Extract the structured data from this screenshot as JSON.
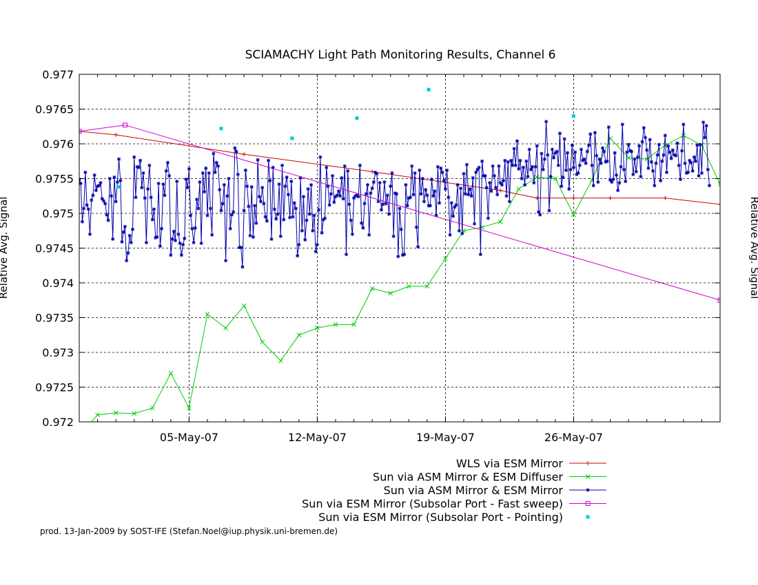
{
  "chart_data": {
    "type": "line",
    "title": "SCIAMACHY Light Path Monitoring Results, Channel 6",
    "ylabel": "Relative Avg. Signal",
    "ylabel_right": "Relative Avg. Signal",
    "xlabel": "",
    "xlim": [
      "2007-04-29T00:00",
      "2007-06-03T00:00"
    ],
    "ylim": [
      0.972,
      0.977
    ],
    "grid": true,
    "legend_position": "bottom-right",
    "x_ticks": [
      {
        "label": "05-May-07",
        "x": "2007-05-05"
      },
      {
        "label": "12-May-07",
        "x": "2007-05-12"
      },
      {
        "label": "19-May-07",
        "x": "2007-05-19"
      },
      {
        "label": "26-May-07",
        "x": "2007-05-26"
      }
    ],
    "y_ticks": [
      "0.972",
      "0.9725",
      "0.973",
      "0.9735",
      "0.974",
      "0.9745",
      "0.975",
      "0.9755",
      "0.976",
      "0.9765",
      "0.977"
    ],
    "series": [
      {
        "name": "WLS via ESM Mirror",
        "color": "#cc0000",
        "marker": "plus",
        "x": [
          "2007-04-29T00:00",
          "2007-05-01T00:00",
          "2007-05-08T00:00",
          "2007-05-15T00:00",
          "2007-05-22T00:00",
          "2007-05-24T00:00",
          "2007-05-26T00:00",
          "2007-05-28T00:00",
          "2007-05-31T00:00",
          "2007-06-03T00:00"
        ],
        "y": [
          0.97618,
          0.97613,
          0.97585,
          0.9756,
          0.97533,
          0.97522,
          0.97522,
          0.97522,
          0.97522,
          0.97513
        ]
      },
      {
        "name": "Sun via ASM Mirror & ESM Diffuser",
        "color": "#00cc00",
        "marker": "cross",
        "x": [
          "2007-04-29T12:00",
          "2007-04-30T00:00",
          "2007-05-01T00:00",
          "2007-05-02T00:00",
          "2007-05-03T00:00",
          "2007-05-04T00:00",
          "2007-05-05T00:00",
          "2007-05-06T00:00",
          "2007-05-07T00:00",
          "2007-05-08T00:00",
          "2007-05-09T00:00",
          "2007-05-10T00:00",
          "2007-05-11T00:00",
          "2007-05-12T00:00",
          "2007-05-13T00:00",
          "2007-05-14T00:00",
          "2007-05-15T00:00",
          "2007-05-16T00:00",
          "2007-05-17T00:00",
          "2007-05-18T00:00",
          "2007-05-19T00:00",
          "2007-05-20T00:00",
          "2007-05-21T00:00",
          "2007-05-22T00:00",
          "2007-05-23T00:00",
          "2007-05-24T00:00",
          "2007-05-25T00:00",
          "2007-05-26T00:00",
          "2007-05-27T00:00",
          "2007-05-28T00:00",
          "2007-05-29T00:00",
          "2007-05-30T00:00",
          "2007-05-31T00:00",
          "2007-06-01T00:00",
          "2007-06-02T00:00",
          "2007-06-03T00:00"
        ],
        "y": [
          0.97195,
          0.9721,
          0.97213,
          0.97212,
          0.9722,
          0.9727,
          0.9722,
          0.97355,
          0.97335,
          0.97367,
          0.97315,
          0.97288,
          0.97325,
          0.97335,
          0.9734,
          0.9734,
          0.97392,
          0.97385,
          0.97395,
          0.97395,
          0.97435,
          0.97475,
          0.9748,
          0.97488,
          0.97535,
          0.97552,
          0.9755,
          0.97498,
          0.97548,
          0.97608,
          0.9758,
          0.97578,
          0.97598,
          0.97612,
          0.97598,
          0.97542
        ]
      },
      {
        "name": "Sun via ASM Mirror & ESM Mirror",
        "color": "#0000aa",
        "marker": "star",
        "x_start": "2007-04-29T00:00",
        "x_step_hours": 2,
        "y": [
          0.97549,
          0.97543,
          0.97488,
          0.97507,
          0.97559,
          0.97512,
          0.97506,
          0.9747,
          0.97519,
          0.97526,
          0.97555,
          0.97533,
          0.97539,
          0.9754,
          0.97544,
          0.97521,
          0.97518,
          0.97514,
          0.97498,
          0.9749,
          0.9755,
          0.97525,
          0.97463,
          0.97552,
          0.97517,
          0.97545,
          0.97578,
          0.97547,
          0.97459,
          0.97473,
          0.97481,
          0.97432,
          0.97443,
          0.97468,
          0.97458,
          0.97477,
          0.97581,
          0.97523,
          0.97567,
          0.97566,
          0.97576,
          0.97537,
          0.97558,
          0.97522,
          0.97458,
          0.97535,
          0.97569,
          0.97523,
          0.97491,
          0.97506,
          0.97465,
          0.97466,
          0.97543,
          0.97453,
          0.97478,
          0.97542,
          0.97526,
          0.97561,
          0.97573,
          0.97554,
          0.9744,
          0.97463,
          0.97474,
          0.97461,
          0.97546,
          0.9747,
          0.97457,
          0.9744,
          0.97455,
          0.97464,
          0.97549,
          0.97537,
          0.97564,
          0.97497,
          0.97478,
          0.97458,
          0.97479,
          0.9752,
          0.97507,
          0.97545,
          0.97457,
          0.97558,
          0.97531,
          0.97565,
          0.97497,
          0.97558,
          0.97507,
          0.97469,
          0.97586,
          0.97559,
          0.97573,
          0.97568,
          0.97534,
          0.97504,
          0.97514,
          0.97541,
          0.97432,
          0.97525,
          0.9755,
          0.97478,
          0.97498,
          0.97502,
          0.97594,
          0.97589,
          0.97556,
          0.97451,
          0.97451,
          0.97423,
          0.97504,
          0.97562,
          0.97539,
          0.9751,
          0.97468,
          0.97538,
          0.97466,
          0.97511,
          0.97486,
          0.97577,
          0.97524,
          0.97517,
          0.97537,
          0.97514,
          0.97495,
          0.97489,
          0.97576,
          0.97547,
          0.97463,
          0.97566,
          0.97506,
          0.97492,
          0.97499,
          0.97542,
          0.97467,
          0.97569,
          0.97491,
          0.97539,
          0.97552,
          0.97527,
          0.97494,
          0.97546,
          0.97495,
          0.97515,
          0.97507,
          0.97439,
          0.97455,
          0.97551,
          0.97475,
          0.97524,
          0.97462,
          0.9749,
          0.97535,
          0.97499,
          0.97541,
          0.97475,
          0.97497,
          0.97445,
          0.97455,
          0.97505,
          0.97581,
          0.97472,
          0.97491,
          0.97493,
          0.97566,
          0.97539,
          0.97512,
          0.97528,
          0.97554,
          0.97516,
          0.97524,
          0.97526,
          0.97532,
          0.97525,
          0.97551,
          0.97521,
          0.97568,
          0.97441,
          0.97561,
          0.97513,
          0.9749,
          0.9747,
          0.97522,
          0.97525,
          0.97526,
          0.97524,
          0.97569,
          0.97486,
          0.97479,
          0.97514,
          0.97528,
          0.97541,
          0.97469,
          0.97529,
          0.97536,
          0.97545,
          0.97559,
          0.97557,
          0.97517,
          0.97544,
          0.97505,
          0.97513,
          0.97545,
          0.97514,
          0.97526,
          0.97499,
          0.97539,
          0.97558,
          0.97467,
          0.97529,
          0.97528,
          0.97438,
          0.97507,
          0.97477,
          0.9744,
          0.97441,
          0.97541,
          0.97511,
          0.97522,
          0.97523,
          0.97568,
          0.97527,
          0.97558,
          0.9748,
          0.97452,
          0.97562,
          0.97528,
          0.9755,
          0.97517,
          0.97534,
          0.97526,
          0.97511,
          0.97511,
          0.97549,
          0.97525,
          0.97532,
          0.97497,
          0.97567,
          0.97515,
          0.97565,
          0.97559,
          0.97547,
          0.97535,
          0.97562,
          0.97523,
          0.97469,
          0.97515,
          0.97496,
          0.97509,
          0.97512,
          0.97541,
          0.97475,
          0.97536,
          0.97471,
          0.97557,
          0.97528,
          0.9757,
          0.97527,
          0.97535,
          0.97525,
          0.97551,
          0.97485,
          0.97559,
          0.97563,
          0.97566,
          0.97441,
          0.97575,
          0.97554,
          0.97554,
          0.97537,
          0.97493,
          0.97544,
          0.97532,
          0.97568,
          0.97554,
          0.97537,
          0.97527,
          0.97568,
          0.97544,
          0.97541,
          0.97547,
          0.97576,
          0.97525,
          0.97574,
          0.97517,
          0.97576,
          0.97569,
          0.97593,
          0.97569,
          0.97604,
          0.97564,
          0.97576,
          0.9755,
          0.97566,
          0.97541,
          0.97575,
          0.97553,
          0.97592,
          0.97563,
          0.97567,
          0.97544,
          0.97567,
          0.97597,
          0.97502,
          0.97498,
          0.97586,
          0.97563,
          0.97578,
          0.97632,
          0.97584,
          0.97504,
          0.97553,
          0.97592,
          0.9758,
          0.97587,
          0.97589,
          0.97569,
          0.97615,
          0.97539,
          0.97552,
          0.97607,
          0.97562,
          0.97587,
          0.97535,
          0.97563,
          0.97598,
          0.97566,
          0.97588,
          0.97556,
          0.97558,
          0.97569,
          0.97592,
          0.97576,
          0.97578,
          0.97572,
          0.97589,
          0.97598,
          0.97614,
          0.97569,
          0.9754,
          0.97616,
          0.97583,
          0.97545,
          0.97578,
          0.97572,
          0.97594,
          0.97589,
          0.97574,
          0.97575,
          0.97624,
          0.97548,
          0.97545,
          0.97549,
          0.97587,
          0.97555,
          0.97533,
          0.97544,
          0.97567,
          0.97628,
          0.97563,
          0.97546,
          0.97588,
          0.97599,
          0.9759,
          0.97589,
          0.97556,
          0.97578,
          0.9756,
          0.97581,
          0.97597,
          0.97553,
          0.97603,
          0.97623,
          0.97609,
          0.97591,
          0.97565,
          0.97606,
          0.97574,
          0.97561,
          0.9754,
          0.97572,
          0.97584,
          0.97599,
          0.97547,
          0.97575,
          0.97584,
          0.97612,
          0.97559,
          0.97597,
          0.97588,
          0.97579,
          0.97591,
          0.97584,
          0.97583,
          0.97601,
          0.97569,
          0.97549,
          0.9759,
          0.97628,
          0.97572,
          0.97558,
          0.97559,
          0.97576,
          0.97573,
          0.97561,
          0.97581,
          0.97575,
          0.97598,
          0.97554,
          0.97599,
          0.97558,
          0.97631,
          0.97609,
          0.97626,
          0.97563,
          0.9754
        ]
      },
      {
        "name": "Sun via ESM Mirror (Subsolar Port - Fast sweep)",
        "color": "#cc00cc",
        "marker": "square",
        "x": [
          "2007-04-29T00:00",
          "2007-05-01T12:00",
          "2007-06-03T00:00"
        ],
        "y": [
          0.97618,
          0.97627,
          0.97375
        ]
      },
      {
        "name": "Sun via ESM Mirror (Subsolar Port - Pointing)",
        "color": "#00cccc",
        "marker": "dot",
        "x": [
          "2007-05-01T03:00",
          "2007-05-06T18:00",
          "2007-05-10T15:00",
          "2007-05-14T04:00",
          "2007-05-18T02:00",
          "2007-05-26T00:00"
        ],
        "y": [
          0.97538,
          0.97622,
          0.97608,
          0.97637,
          0.97678,
          0.9764
        ]
      }
    ]
  },
  "footer": "prod. 13-Jan-2009 by SOST-IFE (Stefan.Noel@iup.physik.uni-bremen.de)"
}
